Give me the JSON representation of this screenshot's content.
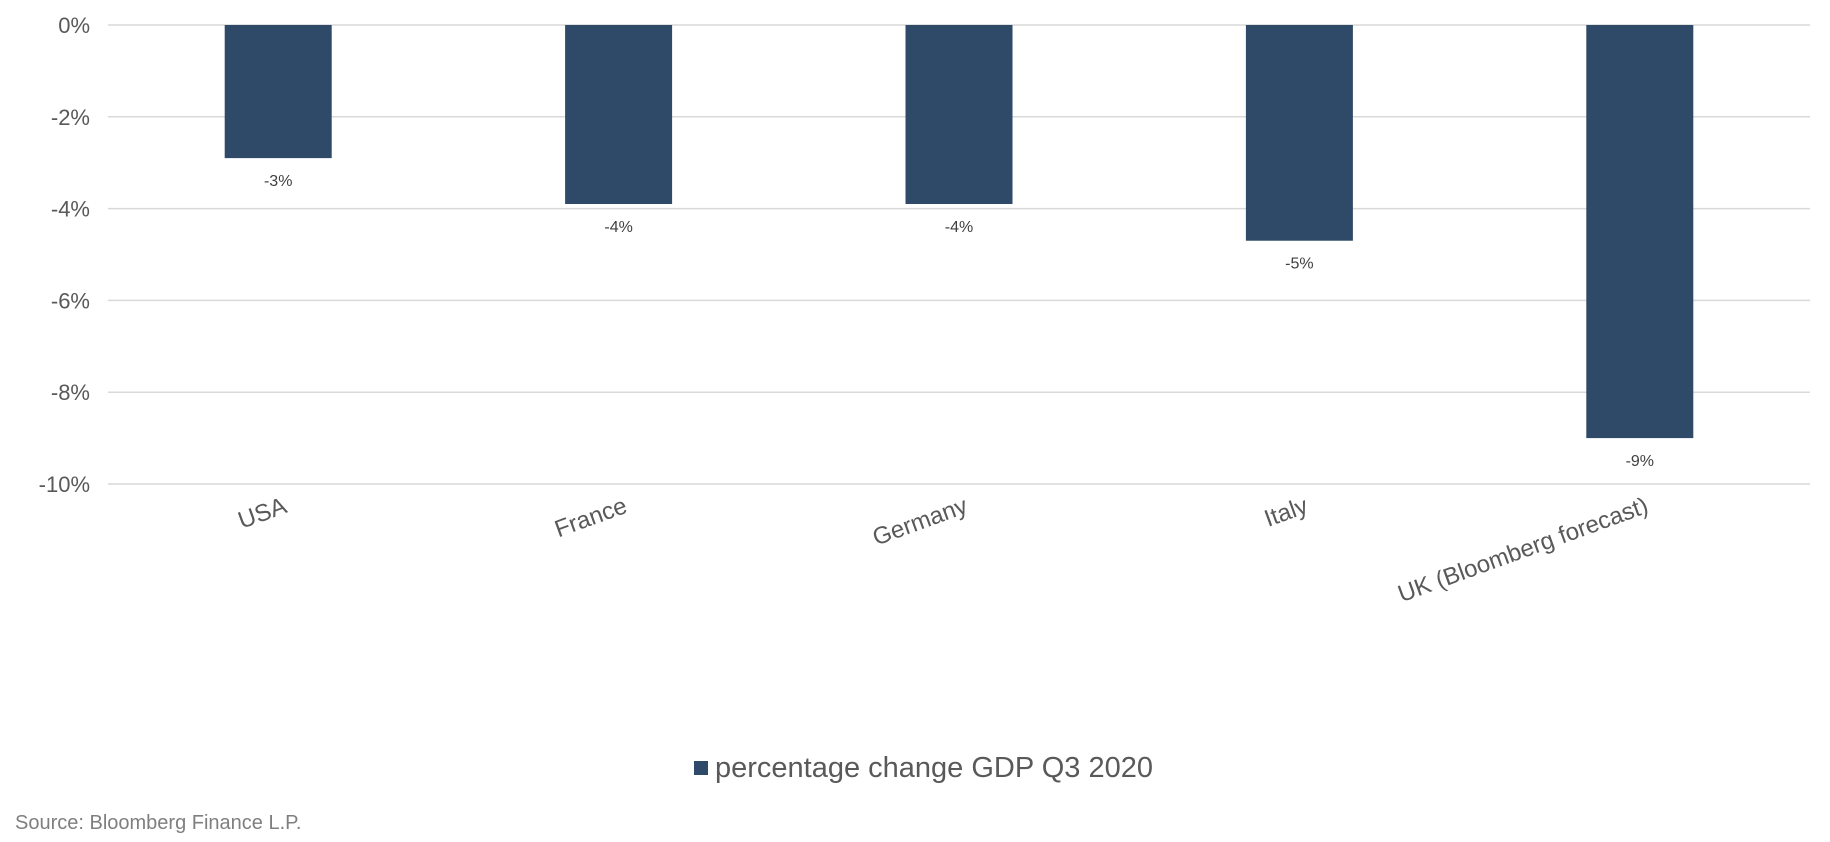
{
  "chart_data": {
    "type": "bar",
    "categories": [
      "USA",
      "France",
      "Germany",
      "Italy",
      "UK (Bloomberg forecast)"
    ],
    "series": [
      {
        "name": "percentage change GDP Q3 2020",
        "values": [
          -2.9,
          -3.9,
          -3.9,
          -4.7,
          -9.0
        ],
        "data_labels": [
          "-3%",
          "-4%",
          "-4%",
          "-5%",
          "-9%"
        ]
      }
    ],
    "yticks": [
      0,
      -2,
      -4,
      -6,
      -8,
      -10
    ],
    "ytick_labels": [
      "0%",
      "-2%",
      "-4%",
      "-6%",
      "-8%",
      "-10%"
    ],
    "ylim": [
      -10,
      0
    ],
    "grid": true,
    "legend_position": "bottom",
    "bar_color": "#2e4a68"
  },
  "source": "Source: Bloomberg Finance L.P."
}
